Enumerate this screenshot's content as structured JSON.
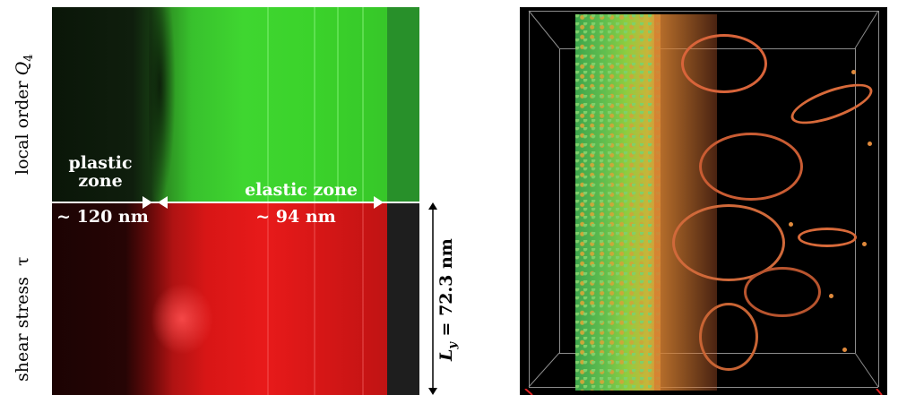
{
  "left_figure": {
    "y_label_top_text": "local order",
    "y_label_top_symbol": "Q",
    "y_label_top_subscript": "4",
    "y_label_bottom_text": "shear stress",
    "y_label_bottom_symbol": "τ",
    "plastic_label_line1": "plastic",
    "plastic_label_line2": "zone",
    "plastic_size": "~ 120 nm",
    "elastic_label": "elastic zone",
    "elastic_size": "~ 94 nm",
    "ly_symbol": "L",
    "ly_subscript": "y",
    "ly_value": " = 72.3 nm",
    "colors": {
      "order_map": "#3fd630",
      "stress_map": "#e81a1a",
      "dark": "#0a1608"
    }
  },
  "right_figure": {
    "colors": {
      "background": "#000000",
      "dense_phase": "#62bf4e",
      "defects": "#d86a3a",
      "box_edges": "#8c8c8c"
    }
  }
}
